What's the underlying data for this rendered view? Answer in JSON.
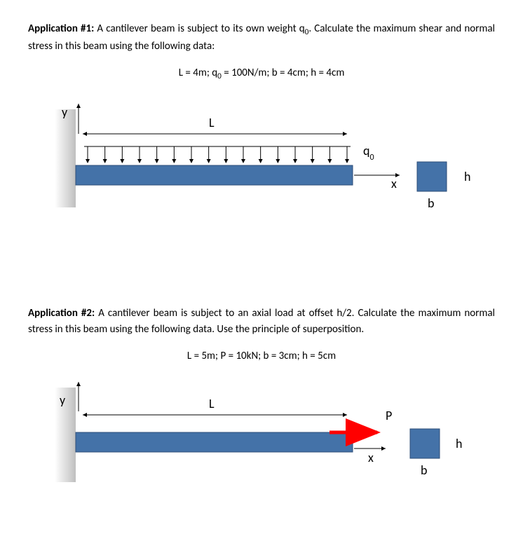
{
  "app1": {
    "title": "Application #1:",
    "desc": "A cantilever beam is subject to its own weight q",
    "desc_sub": "0",
    "desc_after": ". Calculate the maximum shear and normal stress in this beam using the following data:",
    "data_prefix": "L = 4m; q",
    "data_sub": "0",
    "data_after": " = 100N/m; b = 4cm; h = 4cm",
    "y_label": "y",
    "L_label": "L",
    "q_label_prefix": "q",
    "q_label_sub": "0",
    "x_label": "x",
    "h_label": "h",
    "b_label": "b",
    "beam_color": "#4472a8",
    "wall_color": "#d9d9d9",
    "arrow_color": "#000000"
  },
  "app2": {
    "title": "Application #2:",
    "desc": "A cantilever beam is subject to an axial load at offset h/2. Calculate the maximum normal stress in this beam using the following data. Use the principle of superposition.",
    "data": "L = 5m; P = 10kN; b = 3cm; h = 5cm",
    "y_label": "y",
    "L_label": "L",
    "P_label": "P",
    "x_label": "x",
    "h_label": "h",
    "b_label": "b",
    "beam_color": "#4472a8",
    "wall_color": "#d9d9d9",
    "P_arrow_color": "#ff0000"
  }
}
